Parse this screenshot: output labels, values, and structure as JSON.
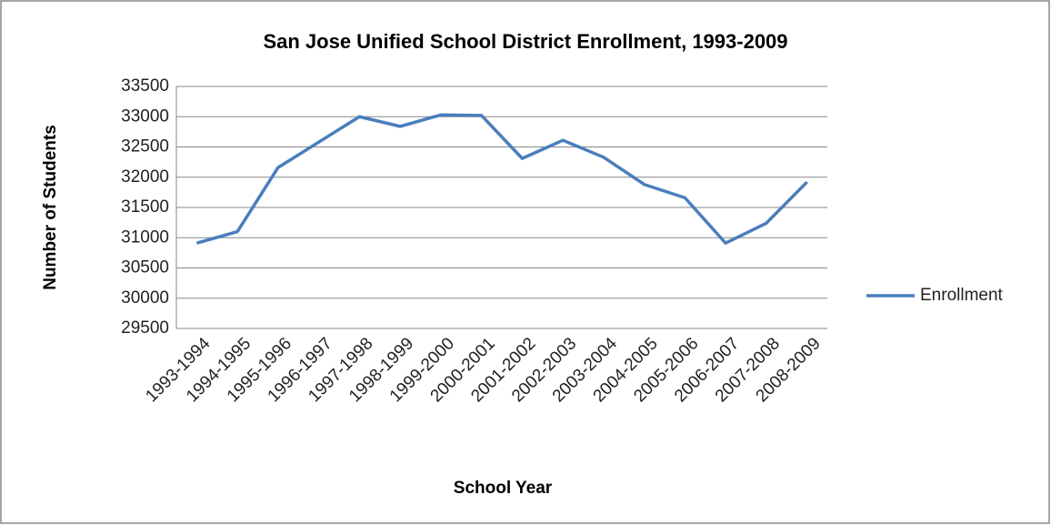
{
  "chart_data": {
    "type": "line",
    "title": "San Jose Unified School District Enrollment, 1993-2009",
    "x_label": "School Year",
    "y_label": "Number of Students",
    "categories": [
      "1993-1994",
      "1994-1995",
      "1995-1996",
      "1996-1997",
      "1997-1998",
      "1998-1999",
      "1999-2000",
      "2000-2001",
      "2001-2002",
      "2002-2003",
      "2003-2004",
      "2004-2005",
      "2005-2006",
      "2006-2007",
      "2007-2008",
      "2008-2009"
    ],
    "series": [
      {
        "name": "Enrollment",
        "color": "#4a7ebb",
        "values": [
          30910,
          31100,
          32160,
          32580,
          33000,
          32840,
          33030,
          33020,
          32310,
          32610,
          32330,
          31880,
          31660,
          30910,
          31240,
          31920
        ]
      }
    ],
    "ylim": [
      29500,
      33500
    ],
    "yticks": [
      29500,
      30000,
      30500,
      31000,
      31500,
      32000,
      32500,
      33000,
      33500
    ],
    "grid": true,
    "legend": "right"
  }
}
